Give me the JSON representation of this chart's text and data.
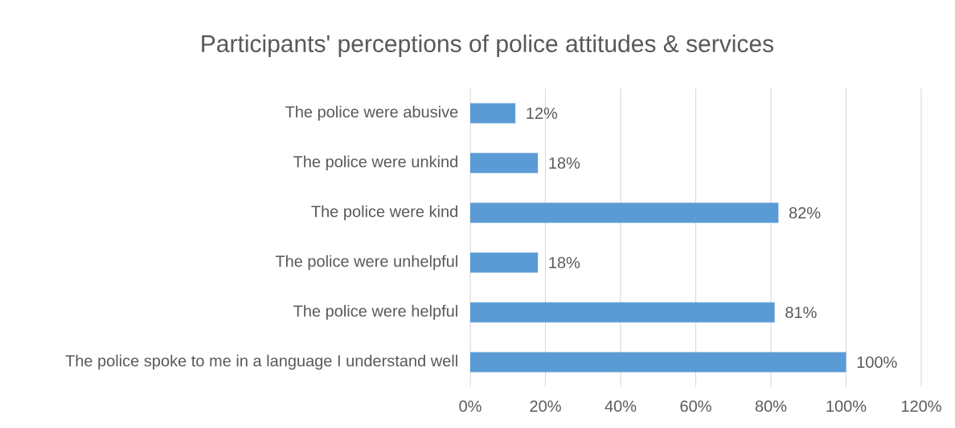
{
  "chart_data": {
    "type": "bar",
    "orientation": "horizontal",
    "title": "Participants' perceptions of police attitudes & services",
    "categories": [
      "The police were abusive",
      "The police were unkind",
      "The police were kind",
      "The police were unhelpful",
      "The police were helpful",
      "The police spoke to me in a language I understand well"
    ],
    "values": [
      12,
      18,
      82,
      18,
      81,
      100
    ],
    "value_labels": [
      "12%",
      "18%",
      "82%",
      "18%",
      "81%",
      "100%"
    ],
    "color": "#5b9bd5",
    "xlim": [
      0,
      120
    ],
    "xticks": [
      {
        "value": 0,
        "label": "0%"
      },
      {
        "value": 20,
        "label": "20%"
      },
      {
        "value": 40,
        "label": "40%"
      },
      {
        "value": 60,
        "label": "60%"
      },
      {
        "value": 80,
        "label": "80%"
      },
      {
        "value": 100,
        "label": "100%"
      },
      {
        "value": 120,
        "label": "120%"
      }
    ],
    "grid": "x"
  }
}
